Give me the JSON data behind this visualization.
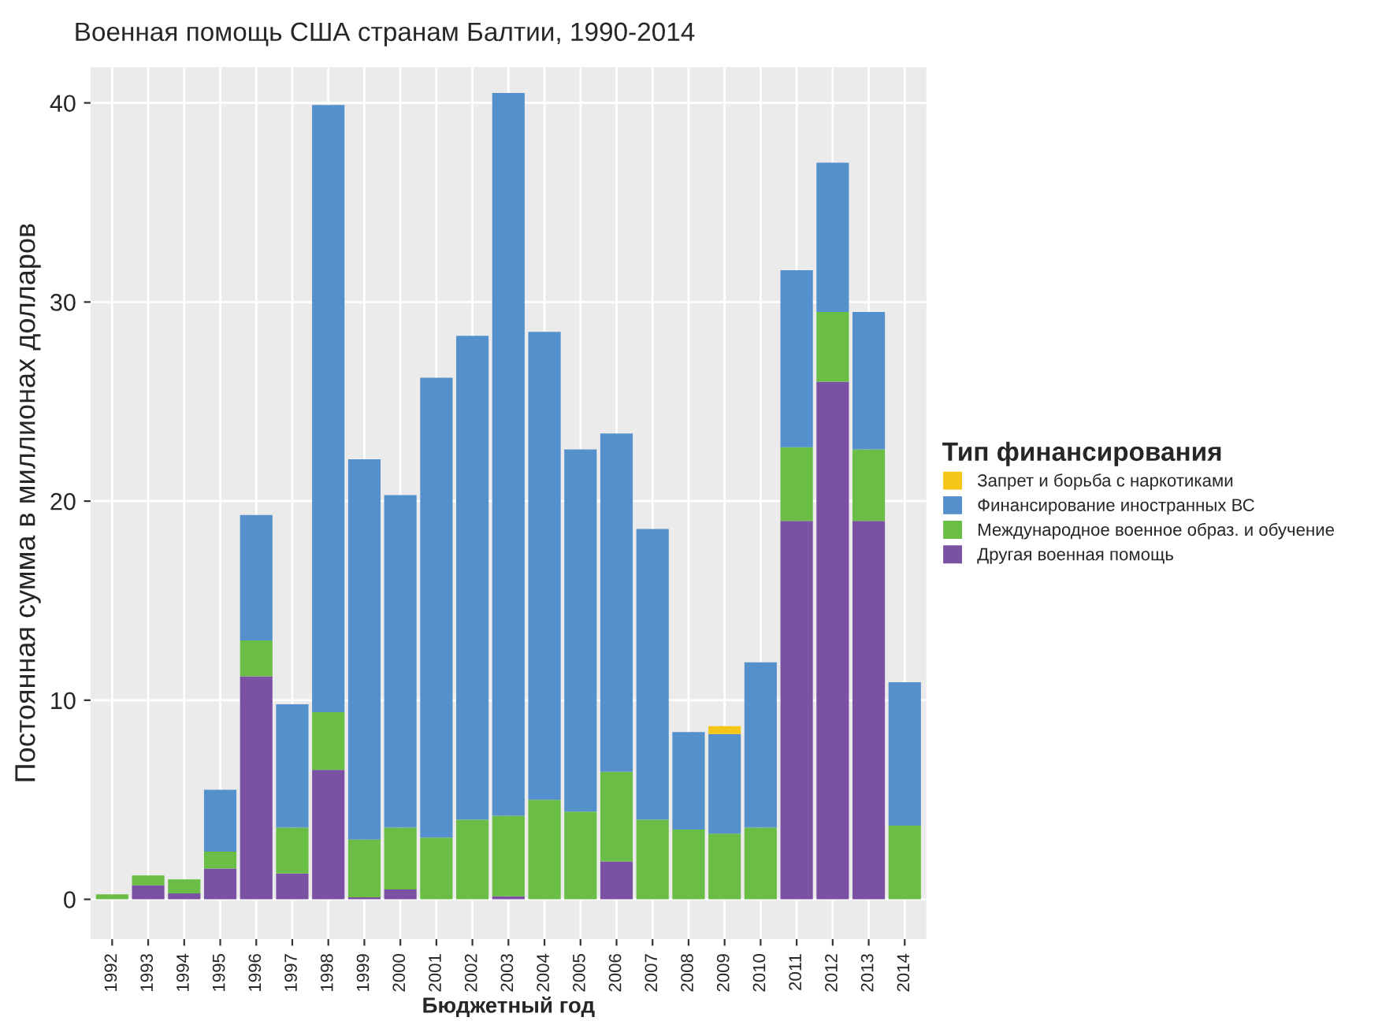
{
  "chart_data": {
    "type": "bar",
    "stacked": true,
    "title": "Военная помощь США странам Балтии, 1990-2014",
    "xlabel": "Бюджетный год",
    "ylabel": "Постоянная сумма в миллионах долларов",
    "legend_title": "Тип финансирования",
    "legend": "right",
    "grid": true,
    "categories": [
      "1992",
      "1993",
      "1994",
      "1995",
      "1996",
      "1997",
      "1998",
      "1999",
      "2000",
      "2001",
      "2002",
      "2003",
      "2004",
      "2005",
      "2006",
      "2007",
      "2008",
      "2009",
      "2010",
      "2011",
      "2012",
      "2013",
      "2014"
    ],
    "ylim": [
      -2,
      41.8
    ],
    "yticks": [
      0,
      10,
      20,
      30,
      40
    ],
    "series": [
      {
        "name": "Другая военная помощь",
        "color": "#7b52a3",
        "values": [
          0,
          0.7,
          0.3,
          1.55,
          11.2,
          1.3,
          6.5,
          0.1,
          0.5,
          0,
          0,
          0.15,
          0,
          0,
          1.9,
          0,
          0,
          0,
          0,
          19.0,
          26.0,
          19.0,
          0
        ]
      },
      {
        "name": "Международное военное образ. и обучение",
        "color": "#6abd45",
        "values": [
          0.25,
          0.5,
          0.7,
          0.85,
          1.8,
          2.3,
          2.9,
          2.9,
          3.1,
          3.1,
          4.0,
          4.05,
          5.0,
          4.4,
          4.5,
          4.0,
          3.5,
          3.3,
          3.6,
          3.7,
          3.5,
          3.6,
          3.7
        ]
      },
      {
        "name": "Финансирование иностранных ВС",
        "color": "#5490cc",
        "values": [
          0,
          0,
          0,
          3.1,
          6.3,
          6.2,
          30.5,
          19.1,
          16.7,
          23.1,
          24.3,
          36.3,
          23.5,
          18.2,
          17.0,
          14.6,
          4.9,
          5.0,
          8.3,
          8.9,
          7.5,
          6.9,
          7.2
        ]
      },
      {
        "name": "Запрет и борьба с наркотиками",
        "color": "#f5c518",
        "values": [
          0,
          0,
          0,
          0,
          0,
          0,
          0,
          0,
          0,
          0,
          0,
          0,
          0,
          0,
          0,
          0,
          0,
          0.4,
          0,
          0,
          0,
          0,
          0
        ]
      }
    ]
  }
}
